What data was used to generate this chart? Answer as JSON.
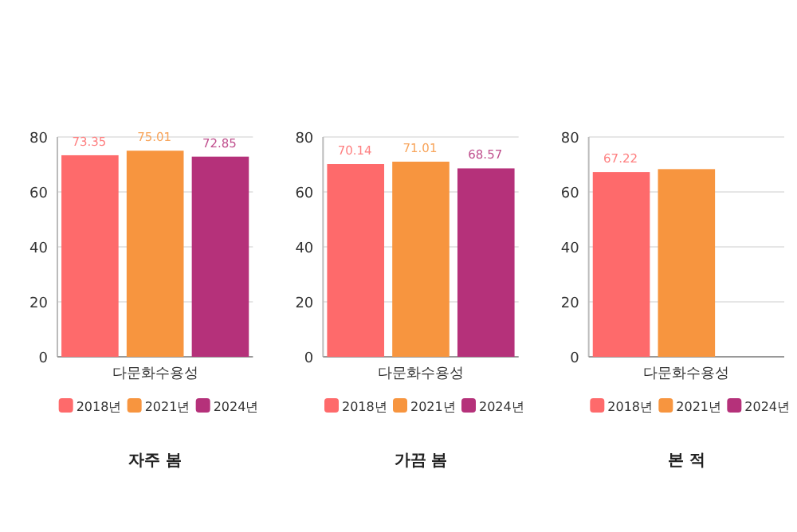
{
  "chart_data": [
    {
      "type": "bar",
      "title": "자주 봄",
      "categories": [
        null,
        "다문화수용성",
        null
      ],
      "ylim": [
        0,
        80
      ],
      "yticks": [
        0,
        20,
        40,
        60,
        80
      ],
      "grid": "y",
      "legend": "bottom",
      "data_labels": true,
      "series": [
        {
          "name": "2018년",
          "color": "#fe6a6b",
          "values": [
            73.35,
            null,
            null
          ]
        },
        {
          "name": "2021년",
          "color": "#f7953f",
          "values": [
            null,
            75.01,
            null
          ]
        },
        {
          "name": "2024년",
          "color": "#b5317a",
          "values": [
            null,
            null,
            72.85
          ]
        }
      ]
    },
    {
      "type": "bar",
      "title": "가끔 봄",
      "categories": [
        null,
        "다문화수용성",
        null
      ],
      "ylim": [
        0,
        80
      ],
      "yticks": [
        0,
        20,
        40,
        60,
        80
      ],
      "grid": "y",
      "legend": "bottom",
      "data_labels": true,
      "series": [
        {
          "name": "2018년",
          "color": "#fe6a6b",
          "values": [
            70.14,
            null,
            null
          ]
        },
        {
          "name": "2021년",
          "color": "#f7953f",
          "values": [
            null,
            71.01,
            null
          ]
        },
        {
          "name": "2024년",
          "color": "#b5317a",
          "values": [
            null,
            null,
            68.57
          ]
        }
      ]
    },
    {
      "type": "bar",
      "title": "본 적",
      "categories": [
        null,
        "다문화수용성",
        null
      ],
      "ylim": [
        0,
        80
      ],
      "yticks": [
        0,
        20,
        40,
        60,
        80
      ],
      "grid": "y",
      "legend": "bottom",
      "series": [
        {
          "name": "2018년",
          "color": "#fe6a6b",
          "values": [
            67.22,
            null,
            null
          ],
          "value_labels": [
            "67.22",
            null,
            null
          ]
        },
        {
          "name": "2021년",
          "color": "#f7953f",
          "values": [
            null,
            68.3,
            null
          ],
          "value_labels": [
            null,
            null,
            null
          ]
        },
        {
          "name": "2024년",
          "color": "#b5317a",
          "values": [
            null,
            null,
            null
          ],
          "value_labels": [
            null,
            null,
            null
          ]
        }
      ]
    }
  ]
}
